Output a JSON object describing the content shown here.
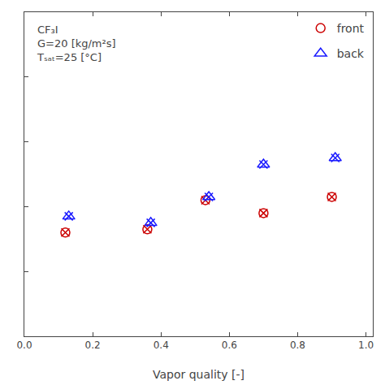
{
  "chart_data": {
    "type": "scatter",
    "xlabel": "Vapor quality [-]",
    "annotation": [
      "CF₃I",
      "G=20 [kg/m²s]",
      "Tₛₐₜ=25 [°C]"
    ],
    "series": [
      {
        "name": "front",
        "color": "#cc0000",
        "marker": "circle-x",
        "x": [
          0.12,
          0.36,
          0.53,
          0.7,
          0.9
        ],
        "values": [
          1600,
          1650,
          2100,
          1900,
          2150
        ]
      },
      {
        "name": "back",
        "color": "#1a1aff",
        "marker": "triangle-x",
        "x": [
          0.13,
          0.37,
          0.54,
          0.7,
          0.91
        ],
        "values": [
          1850,
          1750,
          2150,
          2650,
          2750
        ]
      }
    ],
    "xlim": [
      0.0,
      1.02
    ],
    "xticks": [
      {
        "value": 0.0,
        "label": "0.0"
      },
      0.2,
      0.4,
      0.6,
      0.8,
      {
        "value": 1.0,
        "label": "1.0"
      }
    ],
    "ylim": [
      0,
      5000
    ],
    "yticks": [
      0,
      1000,
      2000,
      3000,
      4000,
      5000
    ],
    "tick_labels": "x",
    "grid": false,
    "legend": "upper right"
  }
}
